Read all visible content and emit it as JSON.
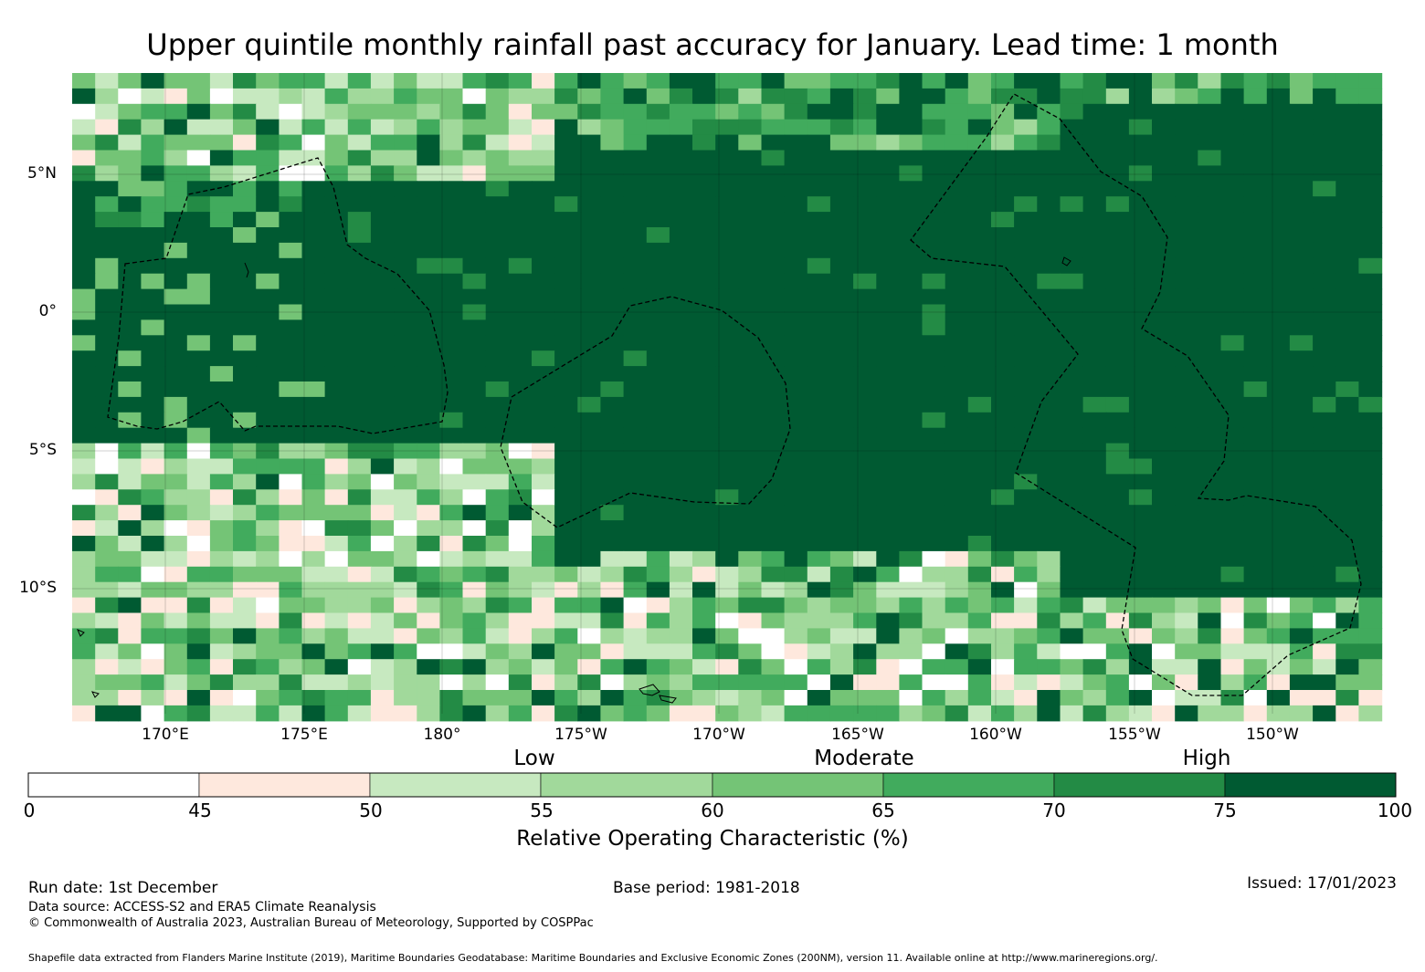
{
  "title": "Upper quintile monthly rainfall past accuracy for January. Lead time: 1 month",
  "lat_labels": [
    "5°N",
    "0°",
    "5°S",
    "10°S"
  ],
  "lon_labels": [
    "170°E",
    "175°E",
    "180°",
    "175°W",
    "170°W",
    "165°W",
    "160°W",
    "155°W",
    "150°W"
  ],
  "categories": [
    "Low",
    "Moderate",
    "High"
  ],
  "colorbar": {
    "ticks": [
      "0",
      "45",
      "50",
      "55",
      "60",
      "65",
      "70",
      "75",
      "100"
    ],
    "colors": [
      "#ffffff",
      "#fee8dd",
      "#c7e9c0",
      "#a1d99b",
      "#74c476",
      "#41ab5d",
      "#238b45",
      "#005a32"
    ],
    "label": "Relative Operating Characteristic (%)"
  },
  "footer": {
    "run_date": "Run date: 1st December",
    "base_period": "Base period: 1981-2018",
    "issued": "Issued: 17/01/2023",
    "data_source": "Data source: ACCESS-S2 and ERA5 Climate Reanalysis",
    "copyright": "© Commonwealth of Australia 2023, Australian Bureau of Meteorology, Supported by COSPPac",
    "shapefile": "Shapefile data extracted from Flanders Marine Institute (2019), Maritime Boundaries Geodatabase: Maritime Boundaries and Exclusive Economic Zones (200NM), version 11. Available online at http://www.marineregions.org/."
  }
}
